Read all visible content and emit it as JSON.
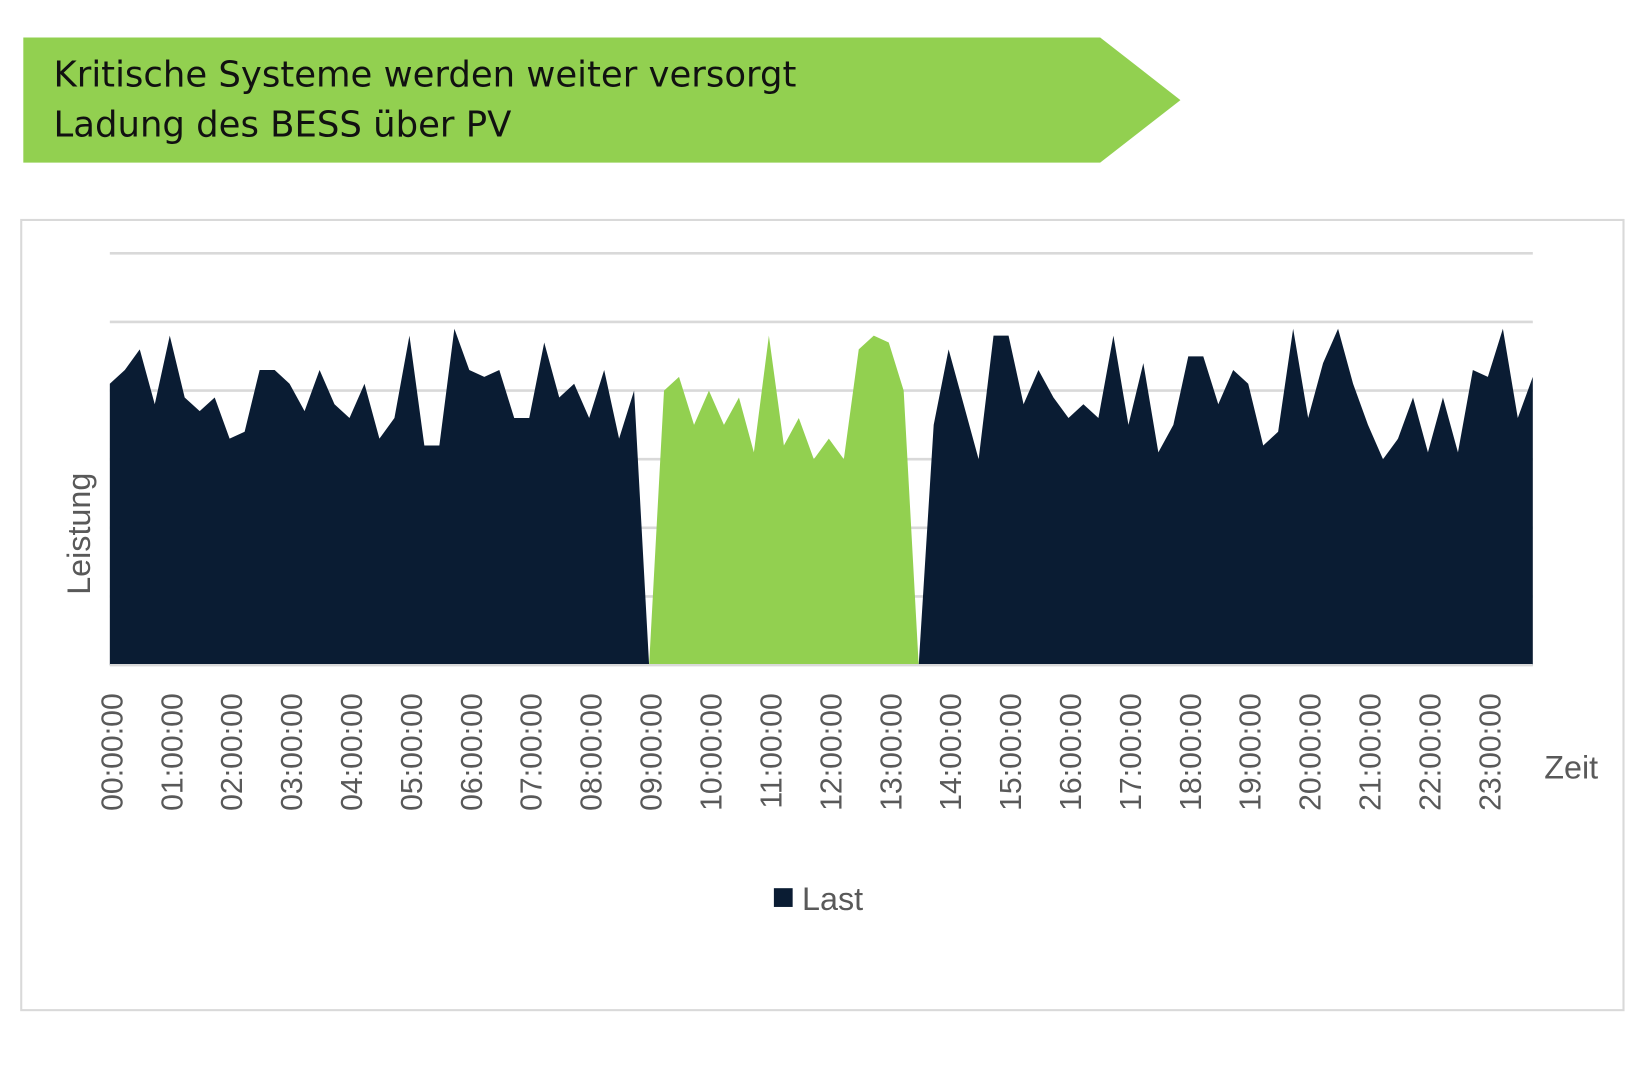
{
  "header": {
    "line1": "Kritische Systeme werden weiter versorgt",
    "line2": "Ladung des BESS über PV",
    "color": "#92d050"
  },
  "chart_data": {
    "type": "area",
    "title": "",
    "xlabel": "Zeit",
    "ylabel": "Leistung",
    "ylim": [
      0,
      6
    ],
    "y_tick_labels": false,
    "grid": true,
    "legend": {
      "position": "bottom",
      "entries": [
        "Last"
      ]
    },
    "x_tick_labels": [
      "00:00:00",
      "01:00:00",
      "02:00:00",
      "03:00:00",
      "04:00:00",
      "05:00:00",
      "06:00:00",
      "07:00:00",
      "08:00:00",
      "09:00:00",
      "10:00:00",
      "11:00:00",
      "12:00:00",
      "13:00:00",
      "14:00:00",
      "15:00:00",
      "16:00:00",
      "17:00:00",
      "18:00:00",
      "19:00:00",
      "20:00:00",
      "21:00:00",
      "22:00:00",
      "23:00:00"
    ],
    "x_step_minutes": 15,
    "series": [
      {
        "name": "Last",
        "color": "#0a1c33",
        "values": [
          4.1,
          4.3,
          4.6,
          3.8,
          4.8,
          3.9,
          3.7,
          3.9,
          3.3,
          3.4,
          4.3,
          4.3,
          4.1,
          3.7,
          4.3,
          3.8,
          3.6,
          4.1,
          3.3,
          3.6,
          4.8,
          3.2,
          3.2,
          4.9,
          4.3,
          4.2,
          4.3,
          3.6,
          3.6,
          4.7,
          3.9,
          4.1,
          3.6,
          4.3,
          3.3,
          4.0,
          0,
          0,
          0,
          0,
          0,
          0,
          0,
          0,
          0,
          0,
          0,
          0,
          0,
          0,
          0,
          0,
          0,
          0,
          0,
          3.5,
          4.6,
          3.8,
          3.0,
          4.8,
          4.8,
          3.8,
          4.3,
          3.9,
          3.6,
          3.8,
          3.6,
          4.8,
          3.5,
          4.4,
          3.1,
          3.5,
          4.5,
          4.5,
          3.8,
          4.3,
          4.1,
          3.2,
          3.4,
          4.9,
          3.6,
          4.4,
          4.9,
          4.1,
          3.5,
          3.0,
          3.3,
          3.9,
          3.1,
          3.9,
          3.1,
          4.3,
          4.2,
          4.9,
          3.6,
          4.2
        ]
      },
      {
        "color": "#92d050",
        "values": [
          0,
          0,
          0,
          0,
          0,
          0,
          0,
          0,
          0,
          0,
          0,
          0,
          0,
          0,
          0,
          0,
          0,
          0,
          0,
          0,
          0,
          0,
          0,
          0,
          0,
          0,
          0,
          0,
          0,
          0,
          0,
          0,
          0,
          0,
          0,
          0,
          0,
          4.0,
          4.2,
          3.5,
          4.0,
          3.5,
          3.9,
          3.1,
          4.8,
          3.2,
          3.6,
          3.0,
          3.3,
          3.0,
          4.6,
          4.8,
          4.7,
          4.0,
          0,
          0,
          0,
          0,
          0,
          0,
          0,
          0,
          0,
          0,
          0,
          0,
          0,
          0,
          0,
          0,
          0,
          0,
          0,
          0,
          0,
          0,
          0,
          0,
          0,
          0,
          0,
          0,
          0,
          0,
          0,
          0,
          0,
          0,
          0,
          0,
          0,
          0,
          0,
          0,
          0,
          0
        ]
      }
    ]
  }
}
